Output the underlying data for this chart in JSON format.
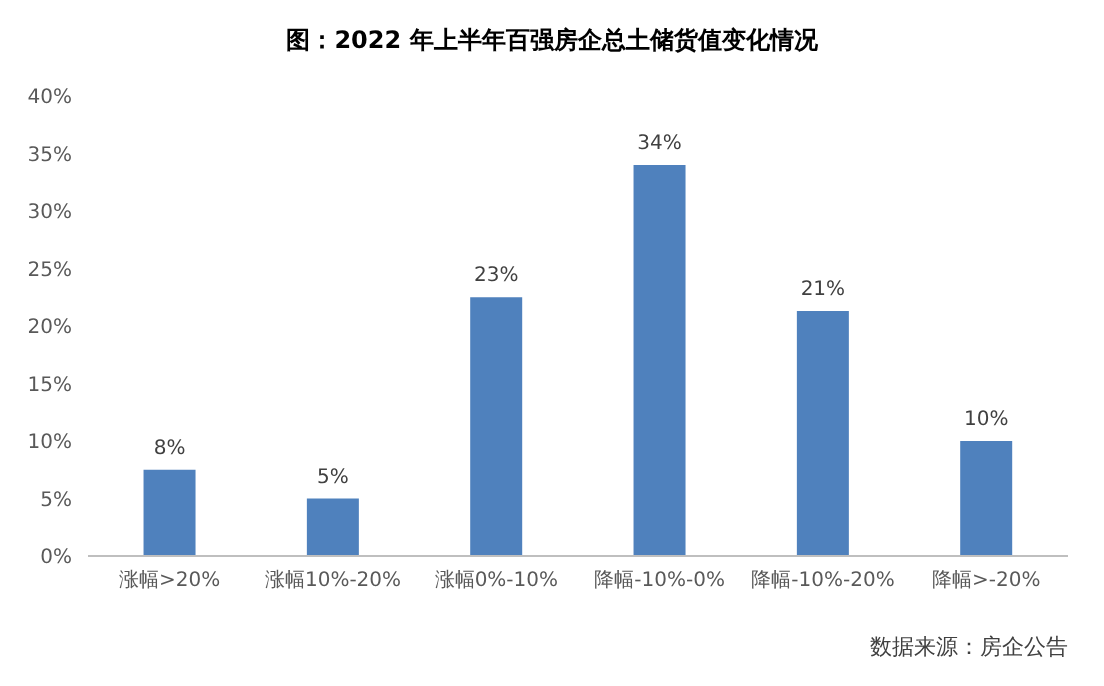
{
  "chart_data": {
    "type": "bar",
    "title": "图：2022 年上半年百强房企总土储货值变化情况",
    "categories": [
      "涨幅>20%",
      "涨幅10%-20%",
      "涨幅0%-10%",
      "降幅-10%-0%",
      "降幅-10%-20%",
      "降幅>-20%"
    ],
    "values": [
      7.5,
      5,
      22.5,
      34,
      21.3,
      10
    ],
    "value_labels": [
      "8%",
      "5%",
      "23%",
      "34%",
      "21%",
      "10%"
    ],
    "color": "#4f81bd",
    "ylim": [
      0,
      40
    ],
    "yticks": [
      {
        "value": 0,
        "label": "0%"
      },
      {
        "value": 5,
        "label": "5%"
      },
      {
        "value": 10,
        "label": "10%"
      },
      {
        "value": 15,
        "label": "15%"
      },
      {
        "value": 20,
        "label": "20%"
      },
      {
        "value": 25,
        "label": "25%"
      },
      {
        "value": 30,
        "label": "30%"
      },
      {
        "value": 35,
        "label": "35%"
      },
      {
        "value": 40,
        "label": "40%"
      }
    ],
    "grid": false,
    "annotations": [
      "数据来源：房企公告"
    ]
  }
}
